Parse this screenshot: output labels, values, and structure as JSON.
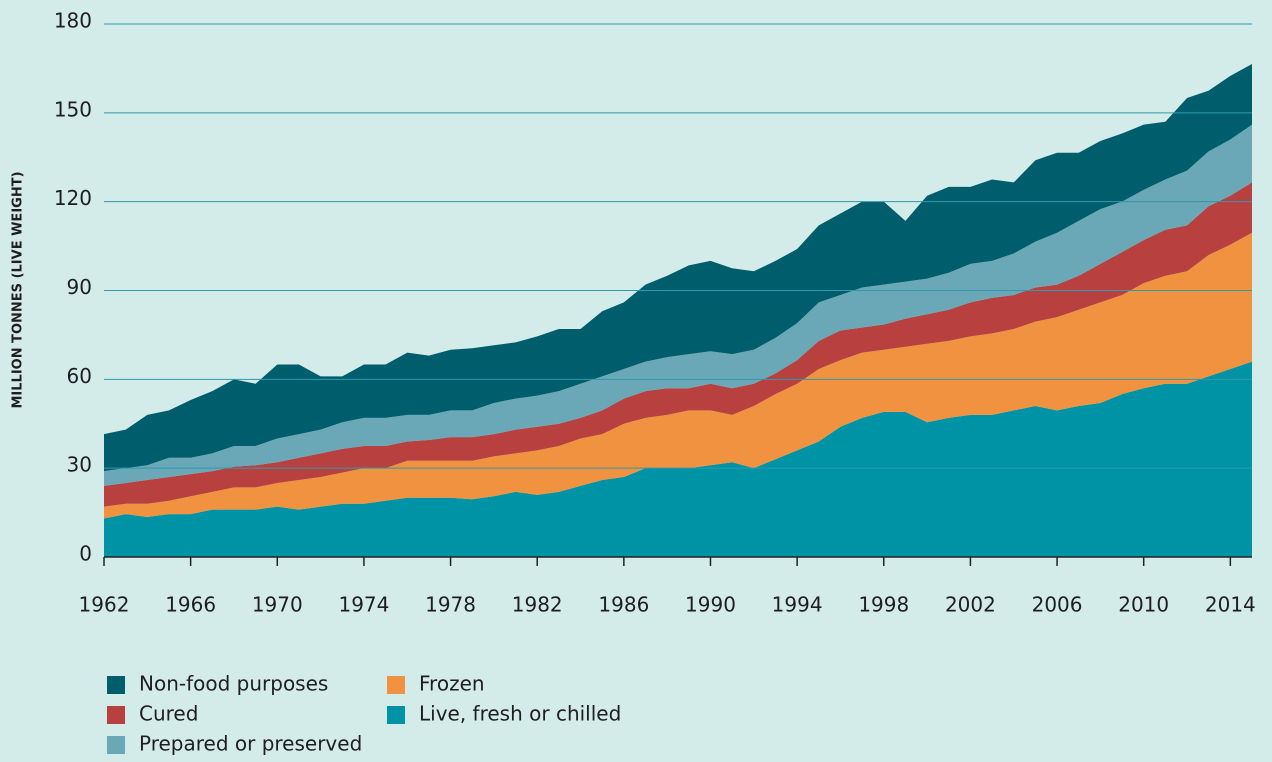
{
  "chart_data": {
    "type": "stacked-area",
    "y_label": "MILLION TONNES (LIVE WEIGHT)",
    "x": [
      1962,
      1963,
      1964,
      1965,
      1966,
      1967,
      1968,
      1969,
      1970,
      1971,
      1972,
      1973,
      1974,
      1975,
      1976,
      1977,
      1978,
      1979,
      1980,
      1981,
      1982,
      1983,
      1984,
      1985,
      1986,
      1987,
      1988,
      1989,
      1990,
      1991,
      1992,
      1993,
      1994,
      1995,
      1996,
      1997,
      1998,
      1999,
      2000,
      2001,
      2002,
      2003,
      2004,
      2005,
      2006,
      2007,
      2008,
      2009,
      2010,
      2011,
      2012,
      2013,
      2014,
      2015
    ],
    "xlim": [
      1962,
      2015
    ],
    "xticks": [
      1962,
      1966,
      1970,
      1974,
      1978,
      1982,
      1986,
      1990,
      1994,
      1998,
      2002,
      2006,
      2010,
      2014
    ],
    "ylim": [
      0,
      180
    ],
    "yticks": [
      0,
      30,
      60,
      90,
      120,
      150,
      180
    ],
    "grid": true,
    "series": [
      {
        "name": "Live, fresh or chilled",
        "color": "#0093a6",
        "values": [
          13,
          14.5,
          13.5,
          14.5,
          14.5,
          16,
          16,
          16,
          17,
          16,
          17,
          18,
          18,
          19,
          20,
          20,
          20,
          19.5,
          20.5,
          22,
          21,
          22,
          24,
          26,
          27,
          30,
          30,
          30,
          31,
          32,
          30,
          33,
          36,
          39,
          44,
          47,
          49,
          49,
          45.5,
          47,
          48,
          48,
          49.5,
          51,
          49.5,
          51,
          52,
          55,
          57,
          58.5,
          58.5,
          61,
          63.5,
          66
        ]
      },
      {
        "name": "Frozen",
        "color": "#f0923f",
        "values": [
          4,
          3.5,
          4.5,
          4.5,
          6,
          6,
          7.5,
          7.5,
          8,
          10,
          10,
          10.5,
          12,
          11,
          12.5,
          12.5,
          12.5,
          13,
          13.5,
          13,
          15,
          15.5,
          16,
          15.5,
          18,
          17,
          18,
          19.5,
          18.5,
          16,
          21,
          22,
          22.5,
          24.5,
          22.5,
          22,
          21,
          22,
          26.5,
          26,
          26.5,
          27.5,
          27.5,
          28.5,
          31.5,
          32.5,
          34,
          33.5,
          35.5,
          36.5,
          38,
          41,
          42,
          43.5
        ]
      },
      {
        "name": "Cured",
        "color": "#b8403f",
        "values": [
          7,
          7,
          8,
          8,
          7.5,
          7,
          7,
          7.5,
          7,
          7.5,
          8,
          8,
          7.5,
          7.5,
          6.5,
          7,
          8,
          8,
          7.5,
          8,
          8,
          7.5,
          7,
          8,
          8.5,
          9,
          9,
          7.5,
          9,
          9,
          7.5,
          7,
          8,
          9.5,
          10,
          8.5,
          8.5,
          9.5,
          10,
          10.5,
          11.5,
          12,
          11.5,
          11.5,
          11,
          11.5,
          13,
          14.5,
          14.5,
          15.5,
          15.5,
          16.5,
          16.5,
          17
        ]
      },
      {
        "name": "Prepared or preserved",
        "color": "#6aa8b7",
        "values": [
          5,
          5,
          5,
          6.5,
          5.5,
          6,
          7,
          6.5,
          8,
          8,
          8,
          9,
          9.5,
          9.5,
          9,
          8.5,
          9,
          9,
          10.5,
          10.5,
          10.5,
          11,
          11.5,
          11.5,
          10,
          10,
          10.5,
          11.5,
          11,
          11.5,
          11.5,
          12,
          12.5,
          13,
          12,
          13.5,
          13.5,
          12.5,
          12,
          12.5,
          13,
          12.5,
          14,
          15.5,
          17.5,
          18.5,
          18.5,
          17,
          17,
          17,
          18.5,
          18.5,
          19,
          19.5
        ]
      },
      {
        "name": "Non-food purposes",
        "color": "#005e6c",
        "values": [
          12.5,
          13,
          17,
          16,
          19.5,
          21,
          22.5,
          21,
          25,
          23.5,
          18,
          15.5,
          18,
          18,
          21,
          20,
          20.5,
          21,
          19.5,
          19,
          20,
          21,
          18.5,
          22,
          22.5,
          26,
          27.5,
          30,
          30.5,
          29,
          26.5,
          26,
          25,
          26,
          27.5,
          29,
          28,
          20.5,
          28,
          29,
          26,
          27.5,
          24,
          27.5,
          27,
          23,
          23,
          23,
          22,
          19.5,
          24.5,
          20.5,
          21.5,
          20.5
        ]
      }
    ]
  }
}
